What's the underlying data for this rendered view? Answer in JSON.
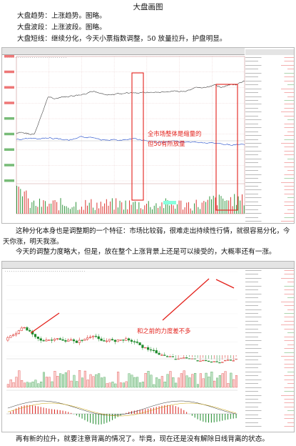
{
  "title": "大盘画图",
  "intro": [
    "大盘趋势：上涨趋势。图略。",
    "大盘波段：上涨波段。图略。",
    "大盘短线：继续分化，今天小票指数调整，50 放量拉升，护盘明显。"
  ],
  "chart1": {
    "annotation_line1": "全市场整体是缩量的",
    "annotation_line2": "但50有所放量",
    "colors": {
      "rise": "#d8201b",
      "fall": "#1d8a2a",
      "line_white": "#444444",
      "line_yellow": "#1a46c9",
      "box": "#e3211b"
    }
  },
  "middle_text": [
    "这种分化本身也是调整期的一个特征：市场比较弱，很难走出持续性行情，就很容易分化，今天你涨，明天我涨。",
    "今天的调整力度略大，但是，放在整个上涨背景上还是可以接受的，大概率还有一涨。"
  ],
  "chart2": {
    "annotation": "和之前的力度差不多",
    "colors": {
      "rise": "#d8201b",
      "fall": "#1d8a2a",
      "trend": "#e3211b"
    }
  },
  "outro": "再有新的拉升，就要注意背离的情况了。毕竟，现在还是没有解除日线背离的状态。"
}
